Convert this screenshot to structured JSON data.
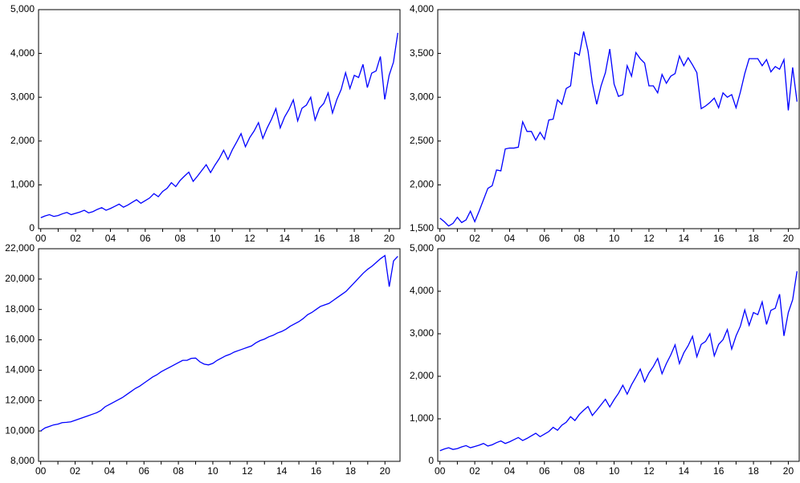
{
  "chart_data": [
    {
      "type": "line",
      "color": "#0000ff",
      "ylim": [
        0,
        5000
      ],
      "yticks": [
        0,
        {
          "value": 1000,
          "label": "1,000"
        },
        {
          "value": 2000,
          "label": "2,000"
        },
        {
          "value": 3000,
          "label": "3,000"
        },
        {
          "value": 4000,
          "label": "4,000"
        },
        {
          "value": 5000,
          "label": "5,000"
        }
      ],
      "categories": [
        "00",
        null,
        null,
        null,
        null,
        null,
        null,
        null,
        "02",
        null,
        null,
        null,
        null,
        null,
        null,
        null,
        "04",
        null,
        null,
        null,
        null,
        null,
        null,
        null,
        "06",
        null,
        null,
        null,
        null,
        null,
        null,
        null,
        "08",
        null,
        null,
        null,
        null,
        null,
        null,
        null,
        "10",
        null,
        null,
        null,
        null,
        null,
        null,
        null,
        "12",
        null,
        null,
        null,
        null,
        null,
        null,
        null,
        "14",
        null,
        null,
        null,
        null,
        null,
        null,
        null,
        "16",
        null,
        null,
        null,
        null,
        null,
        null,
        null,
        "18",
        null,
        null,
        null,
        null,
        null,
        null,
        null,
        "20",
        null,
        null
      ],
      "values": [
        250,
        290,
        320,
        280,
        300,
        340,
        370,
        320,
        350,
        380,
        420,
        360,
        390,
        440,
        480,
        420,
        460,
        510,
        560,
        490,
        540,
        600,
        660,
        580,
        640,
        700,
        800,
        730,
        850,
        920,
        1050,
        960,
        1100,
        1200,
        1290,
        1080,
        1200,
        1330,
        1460,
        1280,
        1450,
        1600,
        1790,
        1580,
        1800,
        1980,
        2170,
        1870,
        2080,
        2230,
        2420,
        2060,
        2300,
        2500,
        2740,
        2300,
        2550,
        2720,
        2940,
        2460,
        2750,
        2820,
        3000,
        2480,
        2750,
        2860,
        3100,
        2640,
        2950,
        3180,
        3560,
        3200,
        3500,
        3450,
        3750,
        3220,
        3550,
        3600,
        3930,
        2950,
        3500,
        3800,
        4470
      ]
    },
    {
      "type": "line",
      "color": "#0000ff",
      "ylim": [
        1500,
        4000
      ],
      "yticks": [
        {
          "value": 1500,
          "label": "1,500"
        },
        {
          "value": 2000,
          "label": "2,000"
        },
        {
          "value": 2500,
          "label": "2,500"
        },
        {
          "value": 3000,
          "label": "3,000"
        },
        {
          "value": 3500,
          "label": "3,500"
        },
        {
          "value": 4000,
          "label": "4,000"
        }
      ],
      "categories": [
        "00",
        null,
        null,
        null,
        null,
        null,
        null,
        null,
        "02",
        null,
        null,
        null,
        null,
        null,
        null,
        null,
        "04",
        null,
        null,
        null,
        null,
        null,
        null,
        null,
        "06",
        null,
        null,
        null,
        null,
        null,
        null,
        null,
        "08",
        null,
        null,
        null,
        null,
        null,
        null,
        null,
        "10",
        null,
        null,
        null,
        null,
        null,
        null,
        null,
        "12",
        null,
        null,
        null,
        null,
        null,
        null,
        null,
        "14",
        null,
        null,
        null,
        null,
        null,
        null,
        null,
        "16",
        null,
        null,
        null,
        null,
        null,
        null,
        null,
        "18",
        null,
        null,
        null,
        null,
        null,
        null,
        null,
        "20",
        null,
        null
      ],
      "values": [
        1620,
        1580,
        1530,
        1560,
        1630,
        1570,
        1600,
        1700,
        1580,
        1700,
        1830,
        1960,
        1990,
        2170,
        2160,
        2410,
        2420,
        2420,
        2430,
        2720,
        2610,
        2610,
        2510,
        2600,
        2520,
        2740,
        2750,
        2970,
        2920,
        3100,
        3130,
        3510,
        3480,
        3750,
        3530,
        3160,
        2920,
        3130,
        3280,
        3550,
        3150,
        3010,
        3030,
        3360,
        3240,
        3510,
        3440,
        3390,
        3130,
        3130,
        3050,
        3260,
        3160,
        3240,
        3270,
        3470,
        3360,
        3450,
        3370,
        3280,
        2870,
        2900,
        2940,
        2990,
        2880,
        3050,
        3000,
        3030,
        2880,
        3060,
        3270,
        3440,
        3440,
        3440,
        3360,
        3430,
        3290,
        3350,
        3320,
        3430,
        2850,
        3340,
        2950
      ]
    },
    {
      "type": "line",
      "color": "#0000ff",
      "ylim": [
        8000,
        22000
      ],
      "yticks": [
        {
          "value": 8000,
          "label": "8,000"
        },
        {
          "value": 10000,
          "label": "10,000"
        },
        {
          "value": 12000,
          "label": "12,000"
        },
        {
          "value": 14000,
          "label": "14,000"
        },
        {
          "value": 16000,
          "label": "16,000"
        },
        {
          "value": 18000,
          "label": "18,000"
        },
        {
          "value": 20000,
          "label": "20,000"
        },
        {
          "value": 22000,
          "label": "22,000"
        }
      ],
      "categories": [
        "00",
        null,
        null,
        null,
        null,
        null,
        null,
        null,
        "02",
        null,
        null,
        null,
        null,
        null,
        null,
        null,
        "04",
        null,
        null,
        null,
        null,
        null,
        null,
        null,
        "06",
        null,
        null,
        null,
        null,
        null,
        null,
        null,
        "08",
        null,
        null,
        null,
        null,
        null,
        null,
        null,
        "10",
        null,
        null,
        null,
        null,
        null,
        null,
        null,
        "12",
        null,
        null,
        null,
        null,
        null,
        null,
        null,
        "14",
        null,
        null,
        null,
        null,
        null,
        null,
        null,
        "16",
        null,
        null,
        null,
        null,
        null,
        null,
        null,
        "18",
        null,
        null,
        null,
        null,
        null,
        null,
        null,
        "20",
        null,
        null,
        null
      ],
      "values": [
        10000,
        10200,
        10300,
        10400,
        10450,
        10550,
        10570,
        10600,
        10700,
        10800,
        10900,
        11000,
        11100,
        11200,
        11350,
        11600,
        11750,
        11900,
        12050,
        12200,
        12400,
        12600,
        12800,
        12950,
        13150,
        13350,
        13550,
        13700,
        13900,
        14050,
        14200,
        14350,
        14500,
        14650,
        14650,
        14780,
        14800,
        14550,
        14400,
        14350,
        14450,
        14650,
        14800,
        14950,
        15050,
        15200,
        15300,
        15400,
        15500,
        15600,
        15800,
        15950,
        16050,
        16200,
        16300,
        16450,
        16550,
        16700,
        16900,
        17050,
        17200,
        17400,
        17650,
        17800,
        18000,
        18200,
        18300,
        18400,
        18600,
        18800,
        19000,
        19200,
        19500,
        19800,
        20100,
        20400,
        20650,
        20850,
        21100,
        21350,
        21550,
        19500,
        21200,
        21500
      ]
    },
    {
      "type": "line",
      "color": "#0000ff",
      "ylim": [
        0,
        5000
      ],
      "yticks": [
        0,
        {
          "value": 1000,
          "label": "1,000"
        },
        {
          "value": 2000,
          "label": "2,000"
        },
        {
          "value": 3000,
          "label": "3,000"
        },
        {
          "value": 4000,
          "label": "4,000"
        },
        {
          "value": 5000,
          "label": "5,000"
        }
      ],
      "categories": [
        "00",
        null,
        null,
        null,
        null,
        null,
        null,
        null,
        "02",
        null,
        null,
        null,
        null,
        null,
        null,
        null,
        "04",
        null,
        null,
        null,
        null,
        null,
        null,
        null,
        "06",
        null,
        null,
        null,
        null,
        null,
        null,
        null,
        "08",
        null,
        null,
        null,
        null,
        null,
        null,
        null,
        "10",
        null,
        null,
        null,
        null,
        null,
        null,
        null,
        "12",
        null,
        null,
        null,
        null,
        null,
        null,
        null,
        "14",
        null,
        null,
        null,
        null,
        null,
        null,
        null,
        "16",
        null,
        null,
        null,
        null,
        null,
        null,
        null,
        "18",
        null,
        null,
        null,
        null,
        null,
        null,
        null,
        "20",
        null,
        null
      ],
      "values": [
        250,
        290,
        320,
        280,
        300,
        340,
        370,
        320,
        350,
        380,
        420,
        360,
        390,
        440,
        480,
        420,
        460,
        510,
        560,
        490,
        540,
        600,
        660,
        580,
        640,
        700,
        800,
        730,
        850,
        920,
        1050,
        960,
        1100,
        1200,
        1290,
        1080,
        1200,
        1330,
        1460,
        1280,
        1450,
        1600,
        1790,
        1580,
        1800,
        1980,
        2170,
        1870,
        2080,
        2230,
        2420,
        2060,
        2300,
        2500,
        2740,
        2300,
        2550,
        2720,
        2940,
        2460,
        2750,
        2820,
        3000,
        2480,
        2750,
        2860,
        3100,
        2640,
        2950,
        3180,
        3560,
        3200,
        3500,
        3450,
        3750,
        3220,
        3550,
        3600,
        3930,
        2950,
        3500,
        3800,
        4470
      ]
    }
  ]
}
